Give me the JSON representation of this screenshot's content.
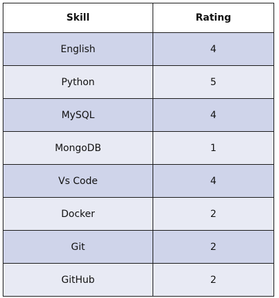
{
  "table": {
    "headers": [
      "Skill",
      "Rating"
    ],
    "rows": [
      {
        "skill": "English",
        "rating": "4"
      },
      {
        "skill": "Python",
        "rating": "5"
      },
      {
        "skill": "MySQL",
        "rating": "4"
      },
      {
        "skill": "MongoDB",
        "rating": "1"
      },
      {
        "skill": "Vs Code",
        "rating": "4"
      },
      {
        "skill": "Docker",
        "rating": "2"
      },
      {
        "skill": "Git",
        "rating": "2"
      },
      {
        "skill": "GitHub",
        "rating": "2"
      }
    ]
  },
  "colors": {
    "row_odd": "#cfd4ea",
    "row_even": "#e8eaf4",
    "border": "#1a1a1a",
    "header_bg": "#ffffff"
  }
}
